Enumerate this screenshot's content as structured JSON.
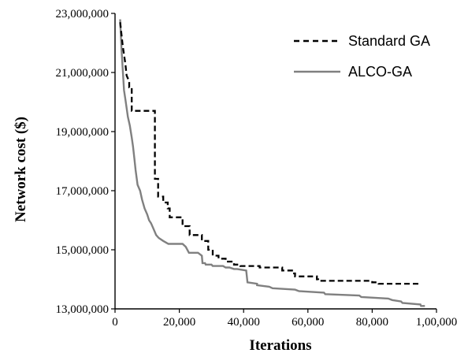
{
  "chart_data": {
    "type": "line",
    "title": "",
    "xlabel": "Iterations",
    "ylabel": "Network cost ($)",
    "xlim": [
      0,
      100000
    ],
    "ylim": [
      13000000,
      23000000
    ],
    "x_ticks": [
      0,
      20000,
      40000,
      60000,
      80000,
      100000
    ],
    "x_tick_labels": [
      "0",
      "20,000",
      "40,000",
      "60,000",
      "80,000",
      "1,00,000"
    ],
    "y_ticks": [
      13000000,
      15000000,
      17000000,
      19000000,
      21000000,
      23000000
    ],
    "y_tick_labels": [
      "13,000,000",
      "15,000,000",
      "17,000,000",
      "19,000,000",
      "21,000,000",
      "23,000,000"
    ],
    "grid": false,
    "legend_position": "top-right",
    "series": [
      {
        "name": "Standard GA",
        "color": "#000000",
        "dash": "dashed",
        "x": [
          1600,
          2400,
          3200,
          3600,
          4400,
          4400,
          5200,
          5200,
          6000,
          6000,
          12400,
          12400,
          13400,
          13400,
          15000,
          15000,
          16400,
          16400,
          17000,
          17000,
          21000,
          21000,
          23200,
          23200,
          27000,
          27000,
          29000,
          29000,
          30400,
          30400,
          32200,
          32200,
          34400,
          34400,
          37000,
          37000,
          39000,
          39000,
          45000,
          45000,
          52000,
          52000,
          55400,
          55400,
          56000,
          56000,
          62800,
          62800,
          63200,
          63200,
          80000,
          80000,
          82000,
          82000,
          95200
        ],
        "y": [
          22700000,
          21900000,
          21300000,
          20900000,
          20700000,
          20500000,
          20500000,
          19700000,
          19700000,
          19700000,
          19700000,
          17400000,
          17400000,
          16800000,
          16800000,
          16600000,
          16600000,
          16400000,
          16400000,
          16100000,
          16100000,
          15800000,
          15800000,
          15500000,
          15500000,
          15300000,
          15300000,
          15000000,
          15000000,
          14800000,
          14800000,
          14700000,
          14700000,
          14600000,
          14600000,
          14500000,
          14500000,
          14450000,
          14450000,
          14400000,
          14400000,
          14300000,
          14300000,
          14200000,
          14200000,
          14100000,
          14100000,
          14000000,
          14000000,
          13950000,
          13950000,
          13900000,
          13900000,
          13850000,
          13850000
        ]
      },
      {
        "name": "ALCO-GA",
        "color": "#808080",
        "dash": "solid",
        "x": [
          1600,
          2000,
          2400,
          2800,
          3200,
          3600,
          4000,
          4600,
          5200,
          5600,
          6000,
          6400,
          7000,
          7800,
          8400,
          9200,
          10000,
          10600,
          11200,
          12000,
          12800,
          13600,
          15000,
          16600,
          18000,
          19200,
          21000,
          22000,
          23000,
          24000,
          25800,
          27000,
          27200,
          28000,
          28200,
          30000,
          30400,
          33600,
          34400,
          35600,
          37000,
          38000,
          40800,
          41200,
          44200,
          44200,
          48000,
          49000,
          56000,
          57200,
          65000,
          65400,
          76000,
          76600,
          85000,
          86200,
          89000,
          89400,
          95000,
          95200,
          96400
        ],
        "y": [
          22800000,
          21800000,
          21100000,
          20400000,
          20100000,
          19800000,
          19500000,
          19200000,
          18800000,
          18500000,
          18100000,
          17700000,
          17200000,
          17000000,
          16700000,
          16400000,
          16200000,
          16000000,
          15900000,
          15700000,
          15500000,
          15400000,
          15300000,
          15200000,
          15200000,
          15200000,
          15200000,
          15100000,
          14900000,
          14900000,
          14900000,
          14800000,
          14550000,
          14550000,
          14500000,
          14500000,
          14450000,
          14450000,
          14400000,
          14400000,
          14350000,
          14350000,
          14300000,
          13900000,
          13850000,
          13800000,
          13750000,
          13700000,
          13650000,
          13600000,
          13550000,
          13500000,
          13450000,
          13400000,
          13350000,
          13300000,
          13250000,
          13200000,
          13150000,
          13100000,
          13100000
        ]
      }
    ]
  }
}
